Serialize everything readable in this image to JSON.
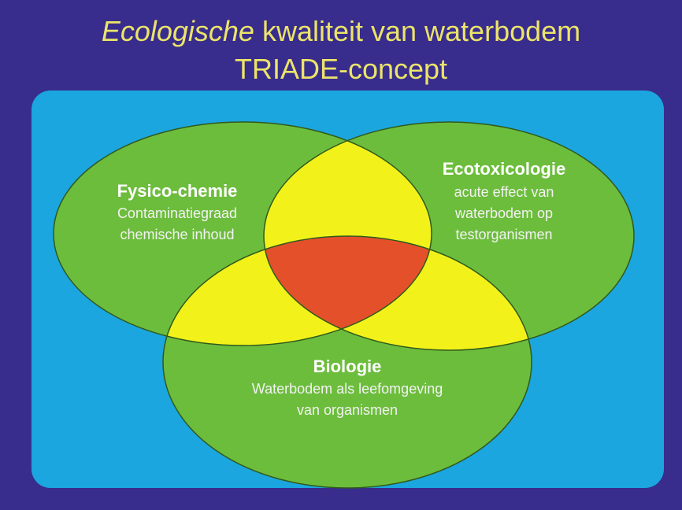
{
  "title": {
    "italic": "Ecologische",
    "rest": "kwaliteit van waterbodem",
    "line2": "TRIADE-concept"
  },
  "circles": [
    {
      "label": "Fysico-chemie",
      "lines": [
        "Contaminatiegraad",
        "chemische inhoud"
      ]
    },
    {
      "label": "Ecotoxicologie",
      "lines": [
        "acute effect van",
        "waterbodem op",
        "testorganismen"
      ]
    },
    {
      "label": "Biologie",
      "lines": [
        "Waterbodem als leefomgeving",
        "van organismen"
      ]
    }
  ]
}
